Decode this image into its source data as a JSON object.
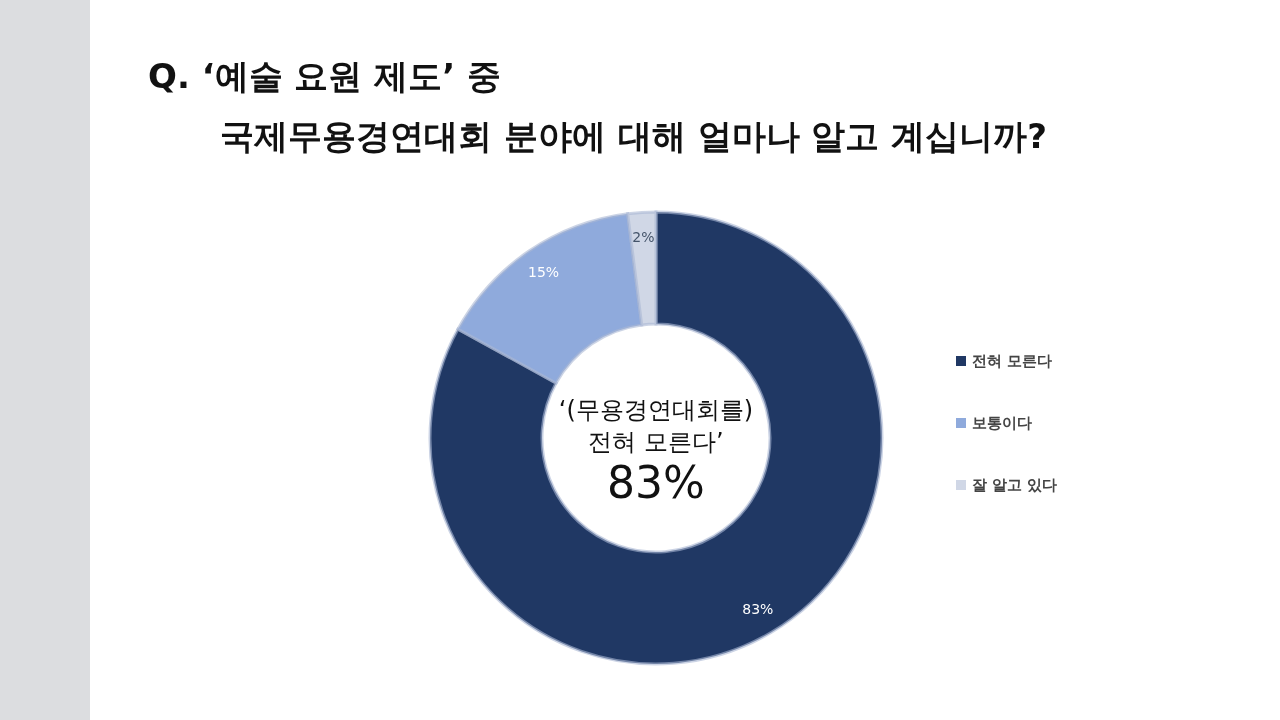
{
  "chart_data": {
    "type": "donut",
    "title": "Q. ‘예술 요원 제도’ 중\n국제무용경연대회 분야에 대해 얼마나 알고 계십니까?",
    "categories": [
      "전혀 모른다",
      "보통이다",
      "잘 알고 있다"
    ],
    "values": [
      83,
      15,
      2
    ],
    "value_labels": [
      "83%",
      "15%",
      "2%"
    ],
    "colors": [
      "#203864",
      "#8faadc",
      "#d0d7e6"
    ],
    "legend": "right",
    "annotations": [
      "‘(무용경연대회를)\n전혀 모른다’\n83%"
    ]
  }
}
